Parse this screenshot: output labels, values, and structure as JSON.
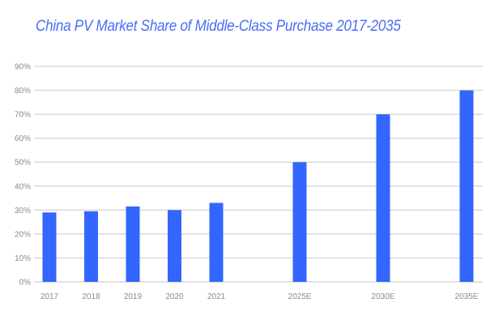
{
  "chart_data": {
    "type": "bar",
    "title": "China PV Market Share of Middle-Class Purchase 2017-2035",
    "xlabel": "",
    "ylabel": "",
    "categories": [
      "2017",
      "2018",
      "2019",
      "2020",
      "2021",
      "2025E",
      "2030E",
      "2035E"
    ],
    "values": [
      29,
      29.5,
      31.5,
      30,
      33,
      50,
      70,
      80
    ],
    "ylim": [
      0,
      90
    ],
    "yticks": [
      "0%",
      "10%",
      "20%",
      "30%",
      "40%",
      "50%",
      "60%",
      "70%",
      "80%",
      "90%"
    ],
    "grid": true,
    "legend": "none",
    "bar_color": "#3366ff",
    "grid_color": "#d9d9d9"
  }
}
